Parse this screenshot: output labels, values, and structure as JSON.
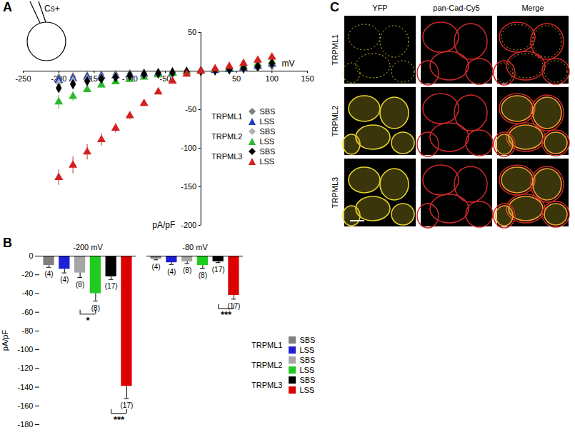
{
  "chart_data": [
    {
      "type": "scatter",
      "label": "A",
      "inset_label": "Cs+",
      "x_label": "mV",
      "y_label": "pA/pF",
      "xlim": [
        -250,
        150
      ],
      "ylim": [
        -200,
        50
      ],
      "xticks": [
        -250,
        -200,
        -150,
        -100,
        -50,
        50,
        100,
        150
      ],
      "yticks": [
        50,
        -50,
        -100,
        -150,
        -200
      ],
      "x": [
        -200,
        -180,
        -160,
        -140,
        -120,
        -100,
        -80,
        -60,
        -40,
        -20,
        0,
        20,
        40,
        60,
        80,
        100
      ],
      "series": [
        {
          "name": "SBS",
          "group": "TRPML1",
          "color": "#7f7f7f",
          "marker": "diamond",
          "values": [
            -9,
            -8,
            -7,
            -6,
            -5,
            -4,
            -3,
            -2,
            -1,
            -1,
            0,
            1,
            2,
            3,
            5,
            7
          ],
          "errors": [
            2,
            2,
            1,
            1,
            1,
            1,
            1,
            1,
            1,
            1,
            0,
            1,
            1,
            1,
            1,
            2
          ]
        },
        {
          "name": "LSS",
          "group": "TRPML1",
          "color": "#1f3fbf",
          "marker": "triangle",
          "values": [
            -12,
            -10,
            -8,
            -7,
            -6,
            -5,
            -4,
            -3,
            -2,
            -1,
            0,
            1,
            2,
            4,
            6,
            9
          ],
          "errors": [
            3,
            2,
            2,
            1,
            1,
            1,
            1,
            1,
            1,
            1,
            0,
            1,
            1,
            1,
            1,
            2
          ]
        },
        {
          "name": "SBS",
          "group": "TRPML2",
          "color": "#b0b0b0",
          "marker": "diamond",
          "values": [
            -16,
            -13,
            -11,
            -9,
            -7,
            -6,
            -4,
            -3,
            -2,
            -1,
            0,
            1,
            2,
            4,
            6,
            9
          ],
          "errors": [
            3,
            3,
            2,
            2,
            1,
            1,
            1,
            1,
            1,
            1,
            0,
            1,
            1,
            1,
            1,
            2
          ]
        },
        {
          "name": "LSS",
          "group": "TRPML2",
          "color": "#2db92d",
          "marker": "triangle",
          "values": [
            -40,
            -33,
            -24,
            -18,
            -14,
            -11,
            -8,
            -5,
            -3,
            -1,
            0,
            2,
            4,
            6,
            9,
            12
          ],
          "errors": [
            9,
            6,
            4,
            3,
            2,
            2,
            1,
            1,
            1,
            1,
            0,
            1,
            1,
            1,
            2,
            2
          ]
        },
        {
          "name": "SBS",
          "group": "TRPML3",
          "color": "#000000",
          "marker": "diamond",
          "values": [
            -22,
            -17,
            -13,
            -10,
            -8,
            -6,
            -4,
            -3,
            -2,
            -1,
            0,
            1,
            2,
            4,
            6,
            10
          ],
          "errors": [
            3,
            2,
            2,
            1,
            1,
            1,
            1,
            1,
            1,
            1,
            0,
            1,
            1,
            1,
            1,
            2
          ]
        },
        {
          "name": "LSS",
          "group": "TRPML3",
          "color": "#d42020",
          "marker": "triangle",
          "values": [
            -138,
            -122,
            -105,
            -89,
            -74,
            -58,
            -42,
            -27,
            -13,
            -4,
            0,
            3,
            6,
            10,
            14,
            18
          ],
          "errors": [
            10,
            11,
            10,
            8,
            6,
            5,
            4,
            3,
            2,
            1,
            0,
            1,
            1,
            1,
            2,
            3
          ]
        }
      ]
    },
    {
      "type": "bar",
      "label": "B",
      "y_label": "pA/pF",
      "categories": [
        "-200 mV",
        "-80 mV"
      ],
      "ylim": [
        -180,
        0
      ],
      "yticks": [
        0,
        -20,
        -40,
        -60,
        -80,
        -100,
        -120,
        -140,
        -160,
        -180
      ],
      "series": [
        {
          "name": "SBS",
          "group": "TRPML1",
          "color": "#7f7f7f",
          "values": [
            -10,
            -3
          ],
          "errors": [
            2,
            1
          ],
          "n_labels": [
            "(4)",
            "(4)"
          ]
        },
        {
          "name": "LSS",
          "group": "TRPML1",
          "color": "#1f1fd6",
          "values": [
            -14,
            -7
          ],
          "errors": [
            4,
            2
          ],
          "n_labels": [
            "(4)",
            "(4)"
          ]
        },
        {
          "name": "SBS",
          "group": "TRPML2",
          "color": "#a6a6a6",
          "values": [
            -18,
            -6
          ],
          "errors": [
            5,
            2
          ],
          "n_labels": [
            "(8)",
            "(8)"
          ]
        },
        {
          "name": "LSS",
          "group": "TRPML2",
          "color": "#1fcc1f",
          "values": [
            -40,
            -10
          ],
          "errors": [
            8,
            3
          ],
          "n_labels": [
            "(8)",
            "(8)"
          ]
        },
        {
          "name": "SBS",
          "group": "TRPML3",
          "color": "#000000",
          "values": [
            -22,
            -6
          ],
          "errors": [
            3,
            1
          ],
          "n_labels": [
            "(17)",
            "(17)"
          ]
        },
        {
          "name": "LSS",
          "group": "TRPML3",
          "color": "#dd0000",
          "values": [
            -139,
            -42
          ],
          "errors": [
            13,
            4
          ],
          "n_labels": [
            "(17)",
            "(17)"
          ]
        }
      ],
      "annotations": [
        {
          "text": "*",
          "category": "-200 mV",
          "group": "TRPML2",
          "y": -62
        },
        {
          "text": "***",
          "category": "-200 mV",
          "group": "TRPML3",
          "y": -168
        },
        {
          "text": "***",
          "category": "-80 mV",
          "group": "TRPML3",
          "y": -56
        }
      ]
    }
  ],
  "panel_c": {
    "label": "C",
    "columns": [
      "YFP",
      "pan-Cad-Cy5",
      "Merge"
    ],
    "rows": [
      "TRPML1",
      "TRPML2",
      "TRPML3"
    ]
  }
}
